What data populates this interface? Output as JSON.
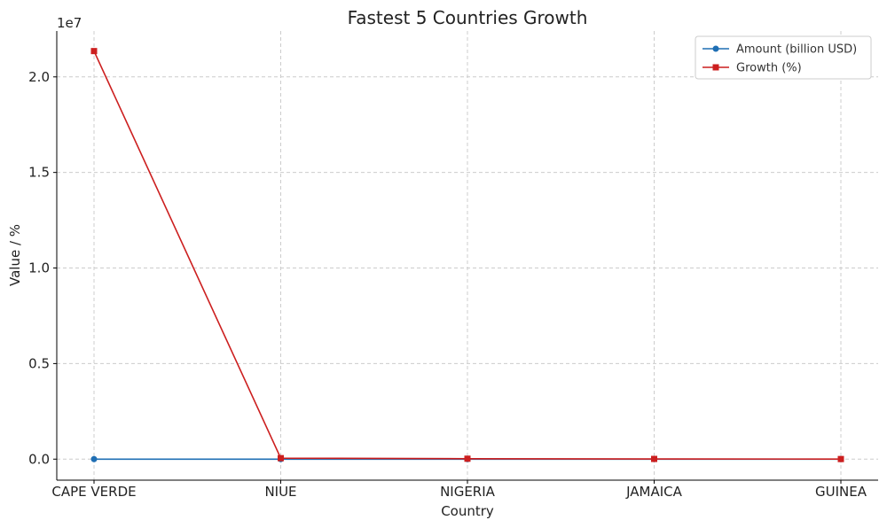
{
  "chart_data": {
    "type": "line",
    "title": "Fastest 5 Countries Growth",
    "xlabel": "Country",
    "ylabel": "Value / %",
    "scale_label": "1e7",
    "categories": [
      "CAPE VERDE",
      "NIUE",
      "NIGERIA",
      "JAMAICA",
      "GUINEA"
    ],
    "ylim": [
      -1100000,
      22400000
    ],
    "yticks": [
      0,
      5000000,
      10000000,
      15000000,
      20000000
    ],
    "ytick_labels": [
      "0.0",
      "0.5",
      "1.0",
      "1.5",
      "2.0"
    ],
    "grid": true,
    "legend_position": "top-right",
    "series": [
      {
        "name": "Amount (billion USD)",
        "values": [
          10,
          15,
          20,
          8,
          6
        ],
        "color": "#1f6fb4",
        "marker": "circle"
      },
      {
        "name": "Growth (%)",
        "values": [
          21350000,
          52000,
          23000,
          11000,
          5000
        ],
        "color": "#cc1f1f",
        "marker": "square"
      }
    ]
  }
}
